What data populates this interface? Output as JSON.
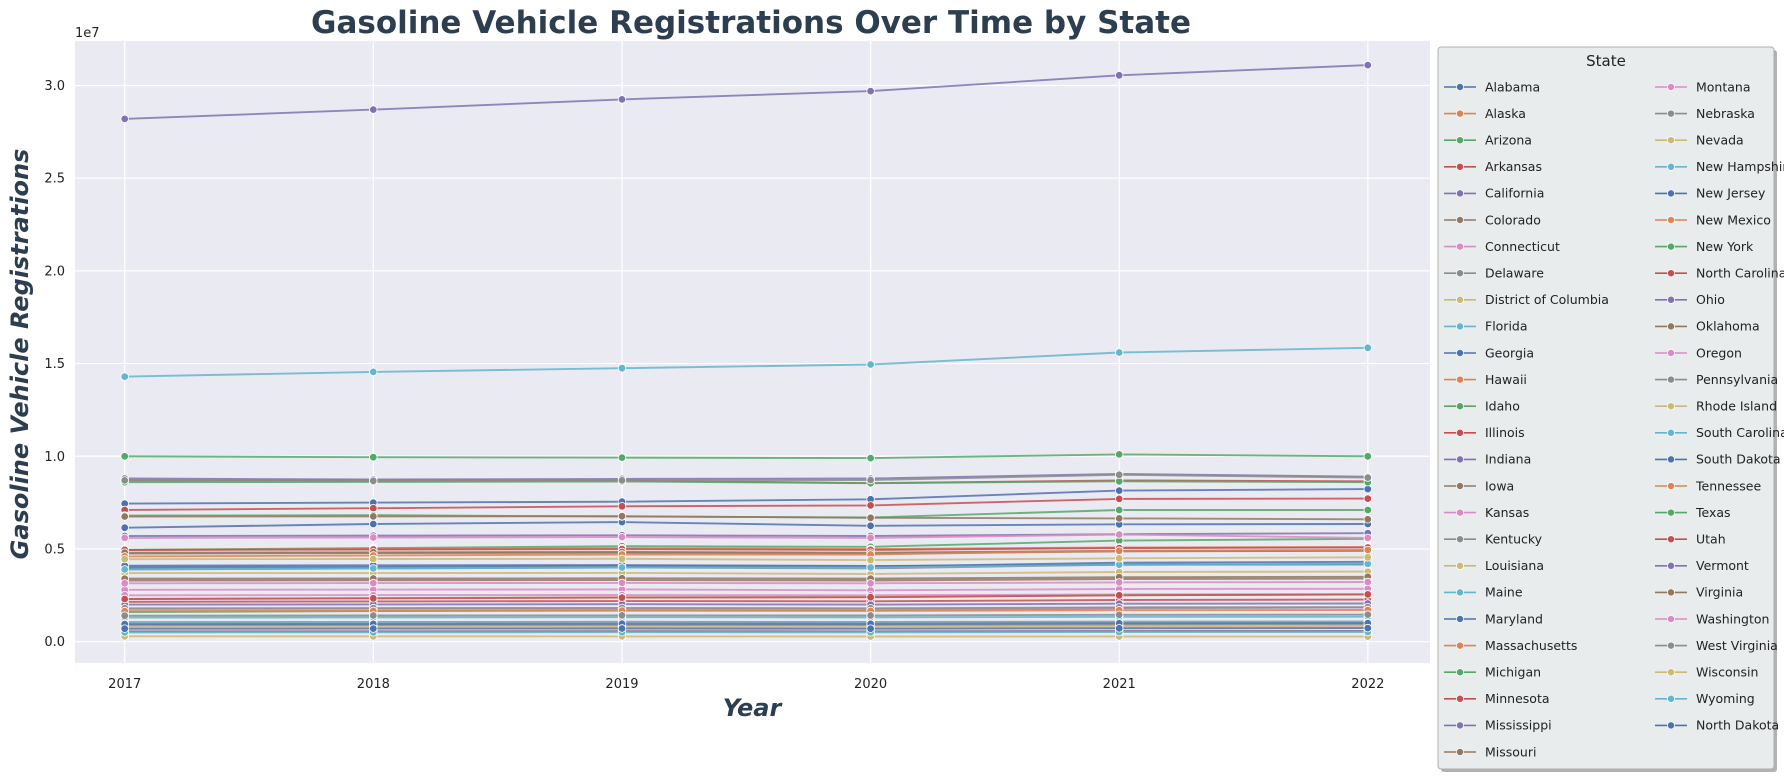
{
  "chart_data": {
    "type": "line",
    "title": "Gasoline Vehicle Registrations Over Time by State",
    "xlabel": "Year",
    "ylabel": "Gasoline Vehicle Registrations",
    "y_offset_text": "1e7",
    "x": [
      2017,
      2018,
      2019,
      2020,
      2021,
      2022
    ],
    "x_tick_labels": [
      "2017",
      "2018",
      "2019",
      "2020",
      "2021",
      "2022"
    ],
    "y_ticks": [
      0,
      5000000,
      10000000,
      15000000,
      20000000,
      25000000,
      30000000
    ],
    "y_tick_labels": [
      "0.0",
      "0.5",
      "1.0",
      "1.5",
      "2.0",
      "2.5",
      "3.0"
    ],
    "xlim": [
      2016.8,
      2022.25
    ],
    "ylim": [
      -1150000,
      32400000
    ],
    "grid": true,
    "marker": "circle",
    "legend": {
      "title": "State",
      "placement": "right, outside plot",
      "columns": 2
    },
    "series": [
      {
        "name": "Alabama",
        "color": "#4c72b0",
        "values": [
          4000000,
          4030000,
          4070000,
          4050000,
          4260000,
          4310000
        ]
      },
      {
        "name": "Alaska",
        "color": "#dd8452",
        "values": [
          560000,
          565000,
          570000,
          560000,
          575000,
          580000
        ]
      },
      {
        "name": "Arizona",
        "color": "#55a868",
        "values": [
          4950000,
          5050000,
          5150000,
          5120000,
          5450000,
          5550000
        ]
      },
      {
        "name": "Arkansas",
        "color": "#c44e52",
        "values": [
          2150000,
          2170000,
          2190000,
          2180000,
          2250000,
          2270000
        ]
      },
      {
        "name": "California",
        "color": "#8172b3",
        "values": [
          28200000,
          28700000,
          29250000,
          29700000,
          30550000,
          31100000
        ]
      },
      {
        "name": "Colorado",
        "color": "#937860",
        "values": [
          4750000,
          4780000,
          4800000,
          4750000,
          4870000,
          4900000
        ]
      },
      {
        "name": "Connecticut",
        "color": "#da8bc3",
        "values": [
          2800000,
          2810000,
          2820000,
          2770000,
          2840000,
          2850000
        ]
      },
      {
        "name": "Delaware",
        "color": "#8c8c8c",
        "values": [
          880000,
          890000,
          900000,
          900000,
          920000,
          930000
        ]
      },
      {
        "name": "District of Columbia",
        "color": "#ccb974",
        "values": [
          290000,
          290000,
          285000,
          280000,
          280000,
          275000
        ]
      },
      {
        "name": "Florida",
        "color": "#64b5cd",
        "values": [
          14300000,
          14550000,
          14750000,
          14950000,
          15600000,
          15850000
        ]
      },
      {
        "name": "Georgia",
        "color": "#4c72b0",
        "values": [
          7450000,
          7500000,
          7550000,
          7680000,
          8150000,
          8230000
        ]
      },
      {
        "name": "Hawaii",
        "color": "#dd8452",
        "values": [
          1050000,
          1060000,
          1070000,
          1060000,
          1080000,
          1085000
        ]
      },
      {
        "name": "Idaho",
        "color": "#55a868",
        "values": [
          1600000,
          1650000,
          1700000,
          1700000,
          1800000,
          1850000
        ]
      },
      {
        "name": "Illinois",
        "color": "#c44e52",
        "values": [
          8700000,
          8700000,
          8700000,
          8550000,
          8700000,
          8650000
        ]
      },
      {
        "name": "Indiana",
        "color": "#8172b3",
        "values": [
          5700000,
          5720000,
          5740000,
          5700000,
          5800000,
          5850000
        ]
      },
      {
        "name": "Iowa",
        "color": "#937860",
        "values": [
          3300000,
          3310000,
          3320000,
          3300000,
          3380000,
          3400000
        ]
      },
      {
        "name": "Kansas",
        "color": "#da8bc3",
        "values": [
          2500000,
          2510000,
          2520000,
          2500000,
          2550000,
          2560000
        ]
      },
      {
        "name": "Kentucky",
        "color": "#8c8c8c",
        "values": [
          3900000,
          3950000,
          4000000,
          3950000,
          4150000,
          4200000
        ]
      },
      {
        "name": "Louisiana",
        "color": "#ccb974",
        "values": [
          3700000,
          3700000,
          3710000,
          3650000,
          3760000,
          3780000
        ]
      },
      {
        "name": "Maine",
        "color": "#64b5cd",
        "values": [
          1050000,
          1060000,
          1070000,
          1060000,
          1080000,
          1090000
        ]
      },
      {
        "name": "Maryland",
        "color": "#4c72b0",
        "values": [
          4100000,
          4120000,
          4130000,
          4080000,
          4150000,
          4170000
        ]
      },
      {
        "name": "Massachusetts",
        "color": "#dd8452",
        "values": [
          4950000,
          5000000,
          5050000,
          5000000,
          5080000,
          5100000
        ]
      },
      {
        "name": "Michigan",
        "color": "#55a868",
        "values": [
          8600000,
          8620000,
          8640000,
          8550000,
          8650000,
          8600000
        ]
      },
      {
        "name": "Minnesota",
        "color": "#c44e52",
        "values": [
          4950000,
          4970000,
          4990000,
          4950000,
          5050000,
          5080000
        ]
      },
      {
        "name": "Mississippi",
        "color": "#8172b3",
        "values": [
          2000000,
          2010000,
          2020000,
          2000000,
          2050000,
          2060000
        ]
      },
      {
        "name": "Missouri",
        "color": "#937860",
        "values": [
          4800000,
          4820000,
          4840000,
          4800000,
          4900000,
          4920000
        ]
      },
      {
        "name": "Montana",
        "color": "#da8bc3",
        "values": [
          1750000,
          1760000,
          1770000,
          1760000,
          1820000,
          1840000
        ]
      },
      {
        "name": "Nebraska",
        "color": "#8c8c8c",
        "values": [
          1800000,
          1810000,
          1820000,
          1800000,
          1850000,
          1860000
        ]
      },
      {
        "name": "Nevada",
        "color": "#ccb974",
        "values": [
          2300000,
          2350000,
          2400000,
          2400000,
          2500000,
          2550000
        ]
      },
      {
        "name": "New Hampshire",
        "color": "#64b5cd",
        "values": [
          1300000,
          1310000,
          1320000,
          1310000,
          1340000,
          1350000
        ]
      },
      {
        "name": "New Jersey",
        "color": "#4c72b0",
        "values": [
          6150000,
          6350000,
          6450000,
          6250000,
          6330000,
          6350000
        ]
      },
      {
        "name": "New Mexico",
        "color": "#dd8452",
        "values": [
          1650000,
          1660000,
          1670000,
          1660000,
          1700000,
          1710000
        ]
      },
      {
        "name": "New York",
        "color": "#55a868",
        "values": [
          10000000,
          9950000,
          9930000,
          9900000,
          10100000,
          10000000
        ]
      },
      {
        "name": "North Carolina",
        "color": "#c44e52",
        "values": [
          7100000,
          7200000,
          7300000,
          7350000,
          7700000,
          7720000
        ]
      },
      {
        "name": "Ohio",
        "color": "#8172b3",
        "values": [
          8800000,
          8750000,
          8780000,
          8800000,
          9050000,
          8900000
        ]
      },
      {
        "name": "Oklahoma",
        "color": "#937860",
        "values": [
          3400000,
          3410000,
          3420000,
          3400000,
          3480000,
          3500000
        ]
      },
      {
        "name": "Oregon",
        "color": "#da8bc3",
        "values": [
          3150000,
          3160000,
          3170000,
          3150000,
          3200000,
          3220000
        ]
      },
      {
        "name": "Pennsylvania",
        "color": "#8c8c8c",
        "values": [
          8700000,
          8680000,
          8700000,
          8720000,
          9000000,
          8850000
        ]
      },
      {
        "name": "Rhode Island",
        "color": "#ccb974",
        "values": [
          800000,
          805000,
          810000,
          800000,
          815000,
          820000
        ]
      },
      {
        "name": "South Carolina",
        "color": "#64b5cd",
        "values": [
          3900000,
          3950000,
          4000000,
          4000000,
          4150000,
          4200000
        ]
      },
      {
        "name": "South Dakota",
        "color": "#4c72b0",
        "values": [
          950000,
          960000,
          970000,
          965000,
          990000,
          1000000
        ]
      },
      {
        "name": "Tennessee",
        "color": "#dd8452",
        "values": [
          4600000,
          4650000,
          4700000,
          4700000,
          4900000,
          4950000
        ]
      },
      {
        "name": "Texas",
        "color": "#55a868",
        "values": [
          6800000,
          6820000,
          6750000,
          6700000,
          7100000,
          7100000
        ]
      },
      {
        "name": "Utah",
        "color": "#c44e52",
        "values": [
          2300000,
          2340000,
          2380000,
          2400000,
          2500000,
          2550000
        ]
      },
      {
        "name": "Vermont",
        "color": "#8172b3",
        "values": [
          550000,
          555000,
          560000,
          555000,
          565000,
          570000
        ]
      },
      {
        "name": "Virginia",
        "color": "#937860",
        "values": [
          6750000,
          6760000,
          6770000,
          6680000,
          6650000,
          6600000
        ]
      },
      {
        "name": "Washington",
        "color": "#da8bc3",
        "values": [
          5600000,
          5620000,
          5640000,
          5600000,
          5780000,
          5600000
        ]
      },
      {
        "name": "West Virginia",
        "color": "#8c8c8c",
        "values": [
          1400000,
          1410000,
          1420000,
          1410000,
          1450000,
          1460000
        ]
      },
      {
        "name": "Wisconsin",
        "color": "#ccb974",
        "values": [
          4450000,
          4460000,
          4470000,
          4400000,
          4500000,
          4550000
        ]
      },
      {
        "name": "Wyoming",
        "color": "#64b5cd",
        "values": [
          500000,
          505000,
          510000,
          505000,
          515000,
          520000
        ]
      },
      {
        "name": "North Dakota",
        "color": "#4c72b0",
        "values": [
          700000,
          705000,
          710000,
          700000,
          720000,
          730000
        ]
      }
    ]
  },
  "colors": {
    "plot_background": "#eaeaf2",
    "grid": "#ffffff",
    "title": "#2c3e50",
    "legend_background": "#e8ecec"
  }
}
